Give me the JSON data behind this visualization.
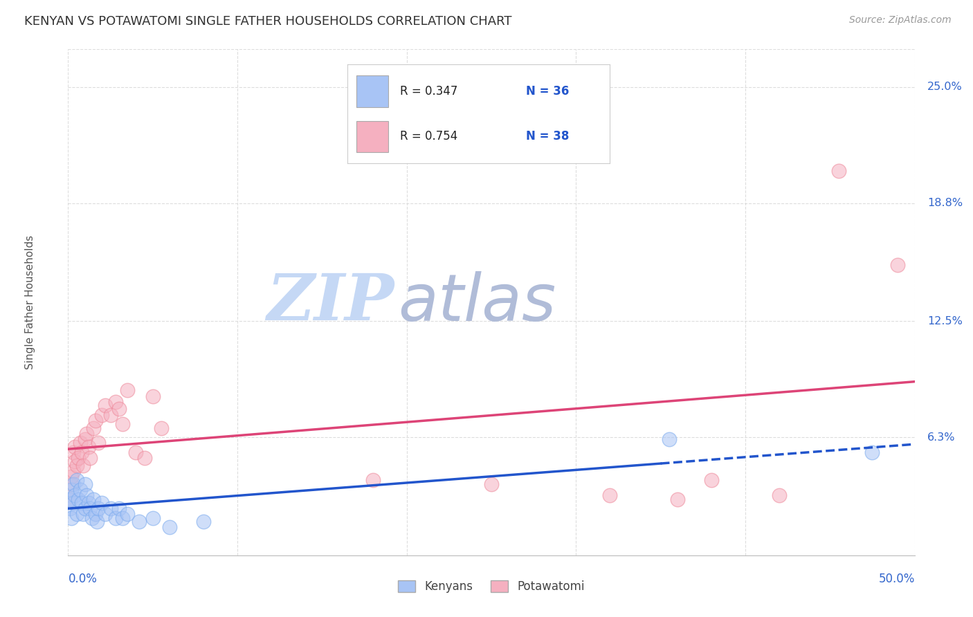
{
  "title": "KENYAN VS POTAWATOMI SINGLE FATHER HOUSEHOLDS CORRELATION CHART",
  "source": "Source: ZipAtlas.com",
  "ylabel": "Single Father Households",
  "kenyan_color_fill": "#a8c4f5",
  "kenyan_color_edge": "#7aaaee",
  "potawatomi_color_fill": "#f5b0c0",
  "potawatomi_color_edge": "#ee8899",
  "kenyan_line_color": "#2255cc",
  "potawatomi_line_color": "#dd4477",
  "bg_color": "#ffffff",
  "grid_color": "#dddddd",
  "axis_label_color": "#3366cc",
  "title_color": "#333333",
  "source_color": "#999999",
  "ytick_vals": [
    0.063,
    0.125,
    0.188,
    0.25
  ],
  "ytick_labels": [
    "6.3%",
    "12.5%",
    "18.8%",
    "25.0%"
  ],
  "xmin": 0.0,
  "xmax": 0.5,
  "ymin": 0.0,
  "ymax": 0.27,
  "kenyan_x": [
    0.001,
    0.001,
    0.002,
    0.002,
    0.003,
    0.003,
    0.004,
    0.005,
    0.005,
    0.006,
    0.007,
    0.008,
    0.009,
    0.01,
    0.01,
    0.011,
    0.012,
    0.013,
    0.014,
    0.015,
    0.016,
    0.017,
    0.018,
    0.02,
    0.022,
    0.025,
    0.028,
    0.03,
    0.032,
    0.035,
    0.042,
    0.05,
    0.06,
    0.08,
    0.355,
    0.475
  ],
  "kenyan_y": [
    0.025,
    0.03,
    0.02,
    0.035,
    0.028,
    0.038,
    0.032,
    0.022,
    0.04,
    0.03,
    0.035,
    0.028,
    0.022,
    0.038,
    0.025,
    0.032,
    0.028,
    0.025,
    0.02,
    0.03,
    0.022,
    0.018,
    0.025,
    0.028,
    0.022,
    0.025,
    0.02,
    0.025,
    0.02,
    0.022,
    0.018,
    0.02,
    0.015,
    0.018,
    0.062,
    0.055
  ],
  "potawatomi_x": [
    0.001,
    0.002,
    0.002,
    0.003,
    0.003,
    0.004,
    0.004,
    0.005,
    0.006,
    0.007,
    0.008,
    0.009,
    0.01,
    0.011,
    0.012,
    0.013,
    0.015,
    0.016,
    0.018,
    0.02,
    0.022,
    0.025,
    0.028,
    0.03,
    0.032,
    0.035,
    0.04,
    0.045,
    0.05,
    0.055,
    0.18,
    0.25,
    0.32,
    0.36,
    0.38,
    0.42,
    0.455,
    0.49
  ],
  "potawatomi_y": [
    0.03,
    0.038,
    0.042,
    0.045,
    0.055,
    0.05,
    0.058,
    0.048,
    0.052,
    0.06,
    0.055,
    0.048,
    0.062,
    0.065,
    0.058,
    0.052,
    0.068,
    0.072,
    0.06,
    0.075,
    0.08,
    0.075,
    0.082,
    0.078,
    0.07,
    0.088,
    0.055,
    0.052,
    0.085,
    0.068,
    0.04,
    0.038,
    0.032,
    0.03,
    0.04,
    0.032,
    0.205,
    0.155
  ],
  "legend_R1": "R = 0.347",
  "legend_N1": "N = 36",
  "legend_R2": "R = 0.754",
  "legend_N2": "N = 38",
  "legend_label1": "Kenyans",
  "legend_label2": "Potawatomi"
}
